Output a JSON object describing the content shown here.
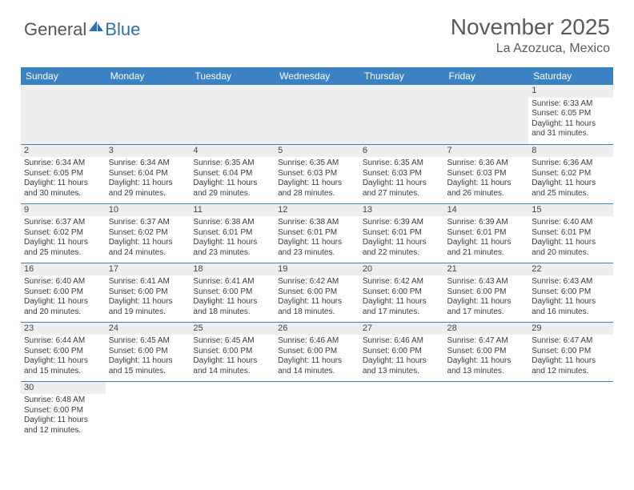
{
  "logo": {
    "text1": "General",
    "text2": "Blue"
  },
  "title": "November 2025",
  "location": "La Azozuca, Mexico",
  "colors": {
    "header_bg": "#3b82c4",
    "header_text": "#ffffff",
    "daynum_bg": "#eeeeee",
    "border": "#3b82c4",
    "text": "#3a3a3a",
    "logo_blue": "#2f6fb0"
  },
  "weekdays": [
    "Sunday",
    "Monday",
    "Tuesday",
    "Wednesday",
    "Thursday",
    "Friday",
    "Saturday"
  ],
  "leading_blanks": 6,
  "days": [
    {
      "n": 1,
      "sunrise": "6:33 AM",
      "sunset": "6:05 PM",
      "daylight": "11 hours and 31 minutes."
    },
    {
      "n": 2,
      "sunrise": "6:34 AM",
      "sunset": "6:05 PM",
      "daylight": "11 hours and 30 minutes."
    },
    {
      "n": 3,
      "sunrise": "6:34 AM",
      "sunset": "6:04 PM",
      "daylight": "11 hours and 29 minutes."
    },
    {
      "n": 4,
      "sunrise": "6:35 AM",
      "sunset": "6:04 PM",
      "daylight": "11 hours and 29 minutes."
    },
    {
      "n": 5,
      "sunrise": "6:35 AM",
      "sunset": "6:03 PM",
      "daylight": "11 hours and 28 minutes."
    },
    {
      "n": 6,
      "sunrise": "6:35 AM",
      "sunset": "6:03 PM",
      "daylight": "11 hours and 27 minutes."
    },
    {
      "n": 7,
      "sunrise": "6:36 AM",
      "sunset": "6:03 PM",
      "daylight": "11 hours and 26 minutes."
    },
    {
      "n": 8,
      "sunrise": "6:36 AM",
      "sunset": "6:02 PM",
      "daylight": "11 hours and 25 minutes."
    },
    {
      "n": 9,
      "sunrise": "6:37 AM",
      "sunset": "6:02 PM",
      "daylight": "11 hours and 25 minutes."
    },
    {
      "n": 10,
      "sunrise": "6:37 AM",
      "sunset": "6:02 PM",
      "daylight": "11 hours and 24 minutes."
    },
    {
      "n": 11,
      "sunrise": "6:38 AM",
      "sunset": "6:01 PM",
      "daylight": "11 hours and 23 minutes."
    },
    {
      "n": 12,
      "sunrise": "6:38 AM",
      "sunset": "6:01 PM",
      "daylight": "11 hours and 23 minutes."
    },
    {
      "n": 13,
      "sunrise": "6:39 AM",
      "sunset": "6:01 PM",
      "daylight": "11 hours and 22 minutes."
    },
    {
      "n": 14,
      "sunrise": "6:39 AM",
      "sunset": "6:01 PM",
      "daylight": "11 hours and 21 minutes."
    },
    {
      "n": 15,
      "sunrise": "6:40 AM",
      "sunset": "6:01 PM",
      "daylight": "11 hours and 20 minutes."
    },
    {
      "n": 16,
      "sunrise": "6:40 AM",
      "sunset": "6:00 PM",
      "daylight": "11 hours and 20 minutes."
    },
    {
      "n": 17,
      "sunrise": "6:41 AM",
      "sunset": "6:00 PM",
      "daylight": "11 hours and 19 minutes."
    },
    {
      "n": 18,
      "sunrise": "6:41 AM",
      "sunset": "6:00 PM",
      "daylight": "11 hours and 18 minutes."
    },
    {
      "n": 19,
      "sunrise": "6:42 AM",
      "sunset": "6:00 PM",
      "daylight": "11 hours and 18 minutes."
    },
    {
      "n": 20,
      "sunrise": "6:42 AM",
      "sunset": "6:00 PM",
      "daylight": "11 hours and 17 minutes."
    },
    {
      "n": 21,
      "sunrise": "6:43 AM",
      "sunset": "6:00 PM",
      "daylight": "11 hours and 17 minutes."
    },
    {
      "n": 22,
      "sunrise": "6:43 AM",
      "sunset": "6:00 PM",
      "daylight": "11 hours and 16 minutes."
    },
    {
      "n": 23,
      "sunrise": "6:44 AM",
      "sunset": "6:00 PM",
      "daylight": "11 hours and 15 minutes."
    },
    {
      "n": 24,
      "sunrise": "6:45 AM",
      "sunset": "6:00 PM",
      "daylight": "11 hours and 15 minutes."
    },
    {
      "n": 25,
      "sunrise": "6:45 AM",
      "sunset": "6:00 PM",
      "daylight": "11 hours and 14 minutes."
    },
    {
      "n": 26,
      "sunrise": "6:46 AM",
      "sunset": "6:00 PM",
      "daylight": "11 hours and 14 minutes."
    },
    {
      "n": 27,
      "sunrise": "6:46 AM",
      "sunset": "6:00 PM",
      "daylight": "11 hours and 13 minutes."
    },
    {
      "n": 28,
      "sunrise": "6:47 AM",
      "sunset": "6:00 PM",
      "daylight": "11 hours and 13 minutes."
    },
    {
      "n": 29,
      "sunrise": "6:47 AM",
      "sunset": "6:00 PM",
      "daylight": "11 hours and 12 minutes."
    },
    {
      "n": 30,
      "sunrise": "6:48 AM",
      "sunset": "6:00 PM",
      "daylight": "11 hours and 12 minutes."
    }
  ],
  "labels": {
    "sunrise": "Sunrise:",
    "sunset": "Sunset:",
    "daylight": "Daylight:"
  }
}
